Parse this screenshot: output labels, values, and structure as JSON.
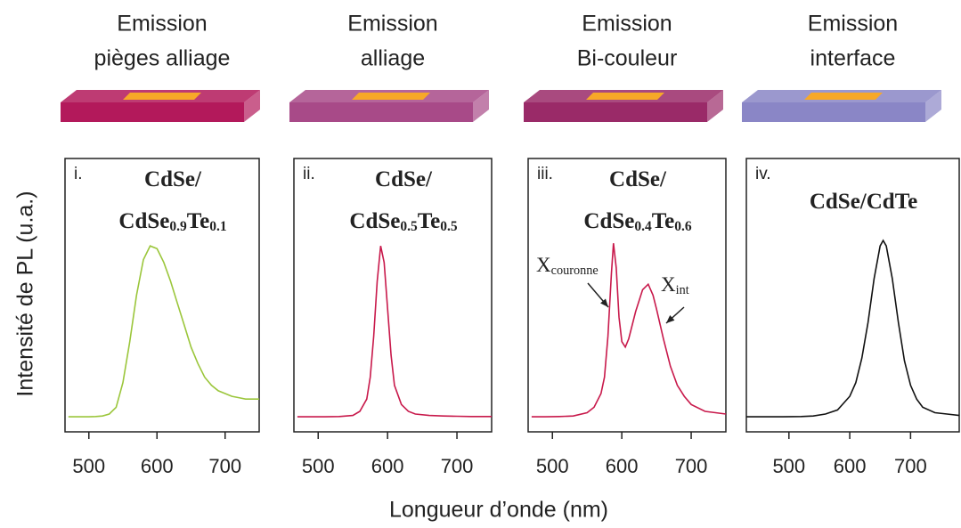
{
  "xlabel": "Longueur d’onde (nm)",
  "ylabel": "Intensité de PL (u.a.)",
  "chart_data": [
    {
      "type": "line",
      "title_lines": [
        "Emission",
        "pièges alliage"
      ],
      "slab_color": "#b3195b",
      "panel_label": "i.",
      "sample_lines": [
        [
          {
            "t": "CdSe/"
          }
        ],
        [
          {
            "t": "CdSe"
          },
          {
            "sub": "0.9"
          },
          {
            "t": "Te"
          },
          {
            "sub": "0.1"
          }
        ]
      ],
      "color": "#9bc63b",
      "x": [
        470,
        480,
        490,
        500,
        510,
        520,
        530,
        540,
        550,
        560,
        570,
        580,
        590,
        600,
        610,
        620,
        630,
        640,
        650,
        660,
        670,
        680,
        690,
        700,
        710,
        720,
        730,
        740,
        750
      ],
      "values": [
        0.055,
        0.055,
        0.055,
        0.055,
        0.056,
        0.058,
        0.065,
        0.09,
        0.18,
        0.33,
        0.5,
        0.63,
        0.68,
        0.67,
        0.62,
        0.55,
        0.47,
        0.39,
        0.31,
        0.25,
        0.2,
        0.17,
        0.15,
        0.14,
        0.13,
        0.125,
        0.12,
        0.12,
        0.12
      ],
      "xlim": [
        465,
        750
      ],
      "xticks": [
        500,
        600,
        700
      ],
      "ylim": [
        0,
        1
      ]
    },
    {
      "type": "line",
      "title_lines": [
        "Emission",
        "alliage"
      ],
      "slab_color": "#a84a88",
      "panel_label": "ii.",
      "sample_lines": [
        [
          {
            "t": "CdSe/"
          }
        ],
        [
          {
            "t": "CdSe"
          },
          {
            "sub": "0.5"
          },
          {
            "t": "Te"
          },
          {
            "sub": "0.5"
          }
        ]
      ],
      "color": "#c8194b",
      "x": [
        470,
        490,
        510,
        530,
        550,
        560,
        570,
        575,
        580,
        585,
        590,
        595,
        600,
        605,
        610,
        620,
        630,
        640,
        660,
        680,
        700,
        720,
        750
      ],
      "values": [
        0.055,
        0.055,
        0.055,
        0.056,
        0.06,
        0.075,
        0.12,
        0.2,
        0.35,
        0.55,
        0.68,
        0.62,
        0.45,
        0.28,
        0.17,
        0.1,
        0.075,
        0.065,
        0.06,
        0.058,
        0.057,
        0.056,
        0.056
      ],
      "xlim": [
        465,
        750
      ],
      "xticks": [
        500,
        600,
        700
      ],
      "ylim": [
        0,
        1
      ]
    },
    {
      "type": "line",
      "title_lines": [
        "Emission",
        "Bi-couleur"
      ],
      "slab_color": "#9a2a68",
      "panel_label": "iii.",
      "sample_lines": [
        [
          {
            "t": "CdSe/"
          }
        ],
        [
          {
            "t": "CdSe"
          },
          {
            "sub": "0.4"
          },
          {
            "t": "Te"
          },
          {
            "sub": "0.6"
          }
        ]
      ],
      "color": "#c8194b",
      "x": [
        470,
        490,
        510,
        530,
        550,
        560,
        570,
        575,
        580,
        585,
        588,
        592,
        596,
        600,
        605,
        610,
        620,
        630,
        638,
        645,
        650,
        660,
        670,
        680,
        690,
        700,
        720,
        750
      ],
      "values": [
        0.055,
        0.055,
        0.056,
        0.058,
        0.07,
        0.09,
        0.14,
        0.2,
        0.35,
        0.58,
        0.69,
        0.6,
        0.42,
        0.33,
        0.31,
        0.34,
        0.44,
        0.52,
        0.54,
        0.5,
        0.45,
        0.34,
        0.24,
        0.17,
        0.13,
        0.1,
        0.075,
        0.065
      ],
      "annotations": [
        [
          {
            "t": "X"
          },
          {
            "sub": "couronne"
          }
        ],
        [
          {
            "t": "X"
          },
          {
            "sub": "int"
          }
        ]
      ],
      "xlim": [
        465,
        750
      ],
      "xticks": [
        500,
        600,
        700
      ],
      "ylim": [
        0,
        1
      ]
    },
    {
      "type": "line",
      "title_lines": [
        "Emission",
        "interface"
      ],
      "slab_color": "#8a86c6",
      "panel_label": "iv.",
      "sample_lines": [
        [
          {
            "t": "CdSe/CdTe"
          }
        ]
      ],
      "color": "#111111",
      "x": [
        430,
        460,
        490,
        520,
        540,
        560,
        580,
        600,
        610,
        620,
        630,
        640,
        650,
        655,
        660,
        670,
        680,
        690,
        700,
        710,
        720,
        740,
        760,
        780
      ],
      "values": [
        0.055,
        0.055,
        0.055,
        0.056,
        0.058,
        0.065,
        0.08,
        0.13,
        0.18,
        0.27,
        0.4,
        0.56,
        0.68,
        0.7,
        0.68,
        0.56,
        0.4,
        0.26,
        0.17,
        0.12,
        0.09,
        0.07,
        0.065,
        0.06
      ],
      "xlim": [
        430,
        780
      ],
      "xticks": [
        500,
        600,
        700
      ],
      "ylim": [
        0,
        1
      ]
    }
  ]
}
